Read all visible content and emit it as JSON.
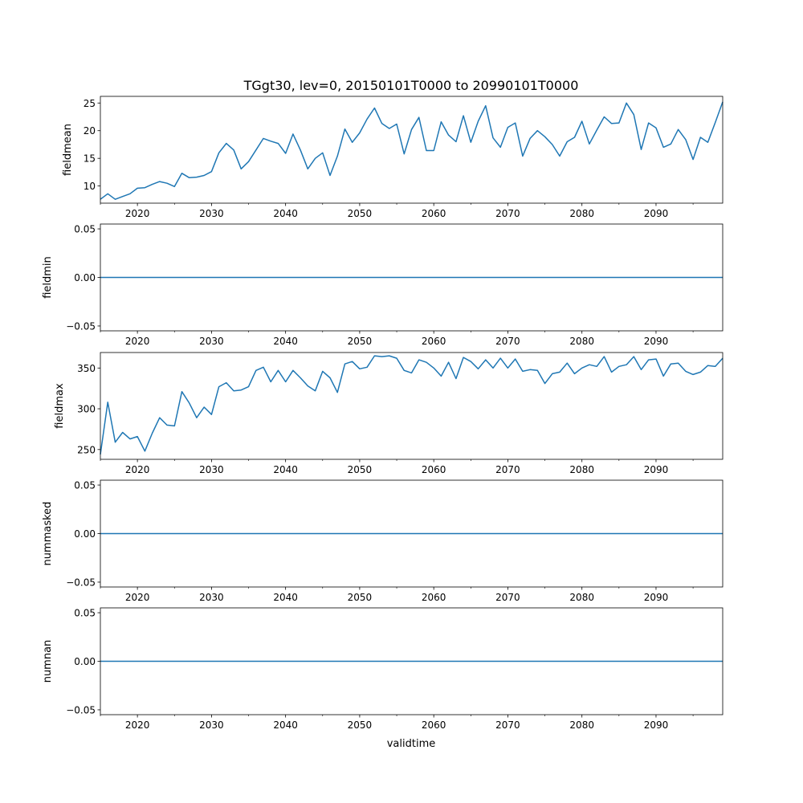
{
  "chart_data": {
    "type": "line",
    "title": "TGgt30, lev=0, 20150101T0000 to 20990101T0000",
    "xlabel": "validtime",
    "xlim": [
      2015,
      2099
    ],
    "x_ticks": [
      2020,
      2030,
      2040,
      2050,
      2060,
      2070,
      2080,
      2090
    ],
    "x_minor_ticks": [
      2015,
      2025,
      2035,
      2045,
      2055,
      2065,
      2075,
      2085,
      2095
    ],
    "line_color": "#1f77b4",
    "x_start": 2015,
    "panels": [
      {
        "ylabel": "fieldmean",
        "ylim": [
          6.9,
          26.2
        ],
        "y_ticks": [
          10,
          15,
          20,
          25
        ],
        "y_tick_labels": [
          "10",
          "15",
          "20",
          "25"
        ],
        "values": [
          7.6,
          8.6,
          7.6,
          8.1,
          8.6,
          9.6,
          9.7,
          10.3,
          10.8,
          10.5,
          9.9,
          12.3,
          11.5,
          11.6,
          11.9,
          12.6,
          16.0,
          17.7,
          16.5,
          13.1,
          14.4,
          16.5,
          18.6,
          18.1,
          17.7,
          15.9,
          19.4,
          16.5,
          13.1,
          15.0,
          16.0,
          11.9,
          15.4,
          20.3,
          17.9,
          19.6,
          22.1,
          24.1,
          21.3,
          20.4,
          21.2,
          15.8,
          20.2,
          22.4,
          16.4,
          16.4,
          21.6,
          19.2,
          18.0,
          22.7,
          17.9,
          21.7,
          24.5,
          18.7,
          17.0,
          20.6,
          21.4,
          15.4,
          18.6,
          20.0,
          18.9,
          17.5,
          15.4,
          18.0,
          18.8,
          21.7,
          17.6,
          20.1,
          22.5,
          21.3,
          21.4,
          25.0,
          22.9,
          16.6,
          21.4,
          20.5,
          17.0,
          17.6,
          20.2,
          18.4,
          14.8,
          18.8,
          17.9,
          21.5,
          25.2
        ]
      },
      {
        "ylabel": "fieldmin",
        "ylim": [
          -0.055,
          0.055
        ],
        "y_ticks": [
          -0.05,
          0.0,
          0.05
        ],
        "y_tick_labels": [
          "−0.05",
          "0.00",
          "0.05"
        ],
        "constant": 0
      },
      {
        "ylabel": "fieldmax",
        "ylim": [
          238,
          369
        ],
        "y_ticks": [
          250,
          300,
          350
        ],
        "y_tick_labels": [
          "250",
          "300",
          "350"
        ],
        "values": [
          244,
          308,
          259,
          271,
          263,
          266,
          248,
          270,
          289,
          280,
          279,
          321,
          307,
          289,
          302,
          293,
          327,
          332,
          322,
          323,
          327,
          347,
          351,
          333,
          347,
          333,
          347,
          338,
          328,
          322,
          346,
          338,
          320,
          355,
          358,
          349,
          351,
          365,
          364,
          365,
          362,
          347,
          344,
          360,
          357,
          350,
          340,
          357,
          337,
          363,
          358,
          349,
          360,
          350,
          362,
          350,
          361,
          346,
          348,
          347,
          331,
          343,
          345,
          356,
          343,
          350,
          354,
          352,
          364,
          345,
          352,
          354,
          364,
          348,
          360,
          361,
          340,
          355,
          356,
          346,
          342,
          345,
          353,
          352,
          362
        ]
      },
      {
        "ylabel": "nummasked",
        "ylim": [
          -0.055,
          0.055
        ],
        "y_ticks": [
          -0.05,
          0.0,
          0.05
        ],
        "y_tick_labels": [
          "−0.05",
          "0.00",
          "0.05"
        ],
        "constant": 0
      },
      {
        "ylabel": "numnan",
        "ylim": [
          -0.055,
          0.055
        ],
        "y_ticks": [
          -0.05,
          0.0,
          0.05
        ],
        "y_tick_labels": [
          "−0.05",
          "0.00",
          "0.05"
        ],
        "constant": 0
      }
    ]
  }
}
